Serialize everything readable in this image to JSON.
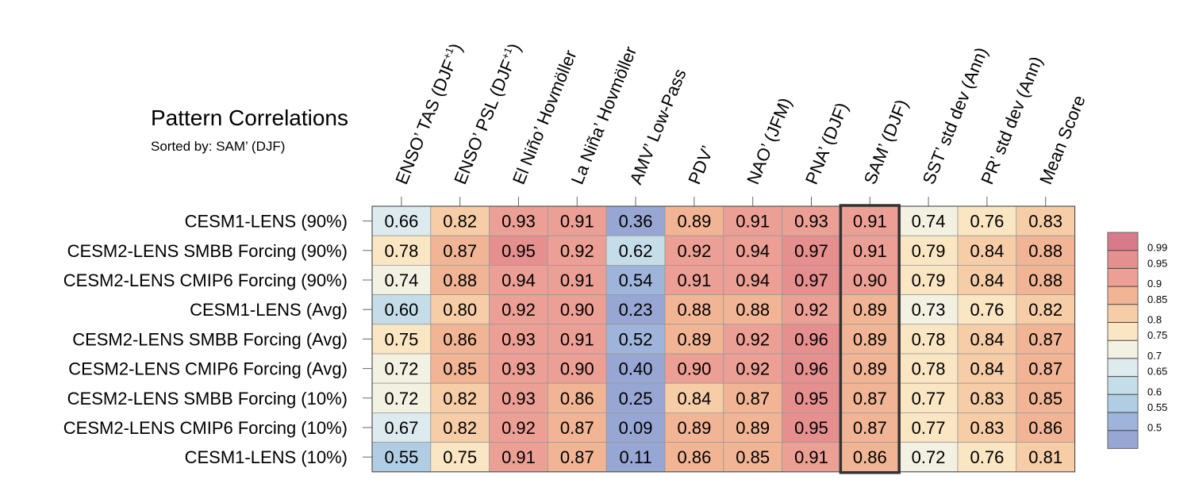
{
  "chart_data": {
    "type": "heatmap",
    "title": "Pattern Correlations",
    "subtitle": "Sorted by: SAM’ (DJF)",
    "columns": [
      {
        "base": "ENSO’ TAS (DJF",
        "sup": "+1",
        "tail": ")"
      },
      {
        "base": "ENSO’ PSL (DJF",
        "sup": "+1",
        "tail": ")"
      },
      {
        "base": "El Niño’ Hovmöller",
        "sup": "",
        "tail": ""
      },
      {
        "base": "La Niña’ Hovmöller",
        "sup": "",
        "tail": ""
      },
      {
        "base": "AMV’ Low-Pass",
        "sup": "",
        "tail": ""
      },
      {
        "base": "PDV’",
        "sup": "",
        "tail": ""
      },
      {
        "base": "NAO’ (JFM)",
        "sup": "",
        "tail": ""
      },
      {
        "base": "PNA’ (DJF)",
        "sup": "",
        "tail": ""
      },
      {
        "base": "SAM’ (DJF)",
        "sup": "",
        "tail": ""
      },
      {
        "base": "SST’ std dev (Ann)",
        "sup": "",
        "tail": ""
      },
      {
        "base": "PR’ std dev (Ann)",
        "sup": "",
        "tail": ""
      },
      {
        "base": "Mean Score",
        "sup": "",
        "tail": ""
      }
    ],
    "rows": [
      "CESM1-LENS (90%)",
      "CESM2-LENS SMBB Forcing (90%)",
      "CESM2-LENS CMIP6 Forcing (90%)",
      "CESM1-LENS (Avg)",
      "CESM2-LENS SMBB Forcing (Avg)",
      "CESM2-LENS CMIP6 Forcing (Avg)",
      "CESM2-LENS SMBB Forcing (10%)",
      "CESM2-LENS CMIP6 Forcing (10%)",
      "CESM1-LENS (10%)"
    ],
    "values": [
      [
        "0.66",
        "0.82",
        "0.93",
        "0.91",
        "0.36",
        "0.89",
        "0.91",
        "0.93",
        "0.91",
        "0.74",
        "0.76",
        "0.83"
      ],
      [
        "0.78",
        "0.87",
        "0.95",
        "0.92",
        "0.62",
        "0.92",
        "0.94",
        "0.97",
        "0.91",
        "0.79",
        "0.84",
        "0.88"
      ],
      [
        "0.74",
        "0.88",
        "0.94",
        "0.91",
        "0.54",
        "0.91",
        "0.94",
        "0.97",
        "0.90",
        "0.79",
        "0.84",
        "0.88"
      ],
      [
        "0.60",
        "0.80",
        "0.92",
        "0.90",
        "0.23",
        "0.88",
        "0.88",
        "0.92",
        "0.89",
        "0.73",
        "0.76",
        "0.82"
      ],
      [
        "0.75",
        "0.86",
        "0.93",
        "0.91",
        "0.52",
        "0.89",
        "0.92",
        "0.96",
        "0.89",
        "0.78",
        "0.84",
        "0.87"
      ],
      [
        "0.72",
        "0.85",
        "0.93",
        "0.90",
        "0.40",
        "0.90",
        "0.92",
        "0.96",
        "0.89",
        "0.78",
        "0.84",
        "0.87"
      ],
      [
        "0.72",
        "0.82",
        "0.93",
        "0.86",
        "0.25",
        "0.84",
        "0.87",
        "0.95",
        "0.87",
        "0.77",
        "0.83",
        "0.85"
      ],
      [
        "0.67",
        "0.82",
        "0.92",
        "0.87",
        "0.09",
        "0.89",
        "0.89",
        "0.95",
        "0.87",
        "0.77",
        "0.83",
        "0.86"
      ],
      [
        "0.55",
        "0.75",
        "0.91",
        "0.87",
        "0.11",
        "0.86",
        "0.85",
        "0.91",
        "0.86",
        "0.72",
        "0.76",
        "0.81"
      ]
    ],
    "highlight_column": "SAM’ (DJF)",
    "legend": {
      "ticks": [
        "0.99",
        "0.95",
        "0.9",
        "0.85",
        "0.8",
        "0.75",
        "0.7",
        "0.65",
        "0.6",
        "0.55",
        "0.5"
      ],
      "colors": [
        "#d77b8b",
        "#e58f8f",
        "#ec9f95",
        "#f1b596",
        "#f6cda6",
        "#fbe6c3",
        "#f3f1e2",
        "#ddebef",
        "#c5dde9",
        "#b1cde3",
        "#9fb4da",
        "#97a6d2"
      ]
    }
  }
}
